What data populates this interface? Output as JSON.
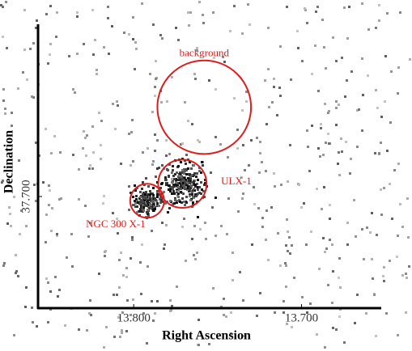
{
  "chart_data": {
    "type": "sky-image",
    "x_label": "Right Ascension",
    "y_label": "Declination",
    "xlim": [
      13.857,
      13.653
    ],
    "ylim": [
      37.6475,
      37.781
    ],
    "xticks": [
      {
        "value": 13.8,
        "label": "13.800"
      },
      {
        "value": 13.7,
        "label": "13.700"
      }
    ],
    "yticks": [
      {
        "value": 37.7,
        "label": "37.700"
      }
    ],
    "region_color": "#dd1c1c",
    "regions": [
      {
        "name": "background",
        "ra": 13.758,
        "dec": 37.742,
        "radius": 0.0279,
        "label_side": "top"
      },
      {
        "name": "ULX-1",
        "ra": 13.771,
        "dec": 37.706,
        "radius": 0.0144,
        "label_side": "right"
      },
      {
        "name": "NGC 300 X-1",
        "ra": 13.792,
        "dec": 37.698,
        "radius": 0.0101,
        "label_side": "bottom-left"
      }
    ]
  }
}
